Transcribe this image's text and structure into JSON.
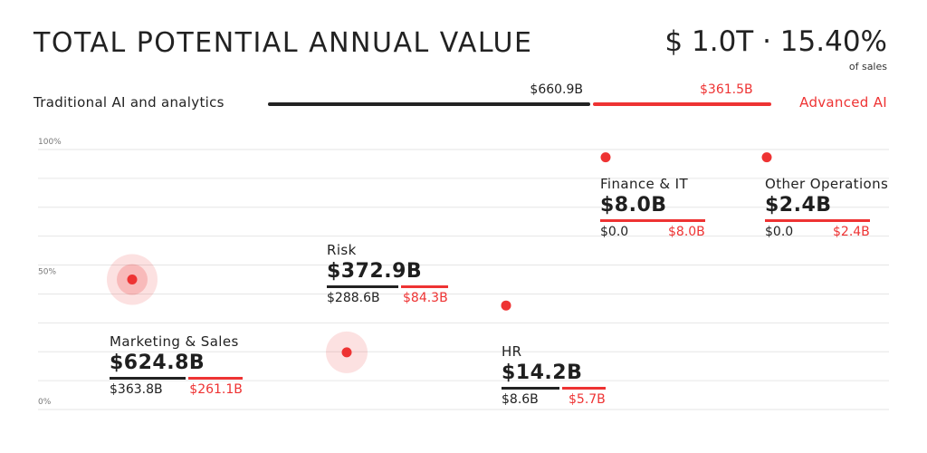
{
  "header": {
    "title": "TOTAL POTENTIAL ANNUAL VALUE",
    "headline": "$ 1.0T · 15.40%",
    "headline_sub": "of sales"
  },
  "split": {
    "traditional_label": "Traditional AI and analytics",
    "advanced_label": "Advanced AI",
    "traditional_value_text": "$660.9B",
    "advanced_value_text": "$361.5B",
    "traditional_value": 660.9,
    "advanced_value": 361.5
  },
  "colors": {
    "traditional": "#222222",
    "advanced": "#ee3333",
    "grid": "#e6e6e6"
  },
  "chart_data": {
    "type": "scatter",
    "yticks": [
      "100%",
      "50%",
      "0%"
    ],
    "ylim": [
      0,
      100
    ],
    "categories": [
      {
        "name": "Marketing & Sales",
        "total": "$624.8B",
        "traditional": "$363.8B",
        "advanced": "$261.1B",
        "traditional_value": 363.8,
        "advanced_value": 261.1,
        "y": 50
      },
      {
        "name": "Risk",
        "total": "$372.9B",
        "traditional": "$288.6B",
        "advanced": "$84.3B",
        "traditional_value": 288.6,
        "advanced_value": 84.3,
        "y": 22
      },
      {
        "name": "HR",
        "total": "$14.2B",
        "traditional": "$8.6B",
        "advanced": "$5.7B",
        "traditional_value": 8.6,
        "advanced_value": 5.7,
        "y": 40
      },
      {
        "name": "Finance & IT",
        "total": "$8.0B",
        "traditional": "$0.0",
        "advanced": "$8.0B",
        "traditional_value": 0.0,
        "advanced_value": 8.0,
        "y": 97
      },
      {
        "name": "Other Operations",
        "total": "$2.4B",
        "traditional": "$0.0",
        "advanced": "$2.4B",
        "traditional_value": 0.0,
        "advanced_value": 2.4,
        "y": 97
      }
    ]
  }
}
